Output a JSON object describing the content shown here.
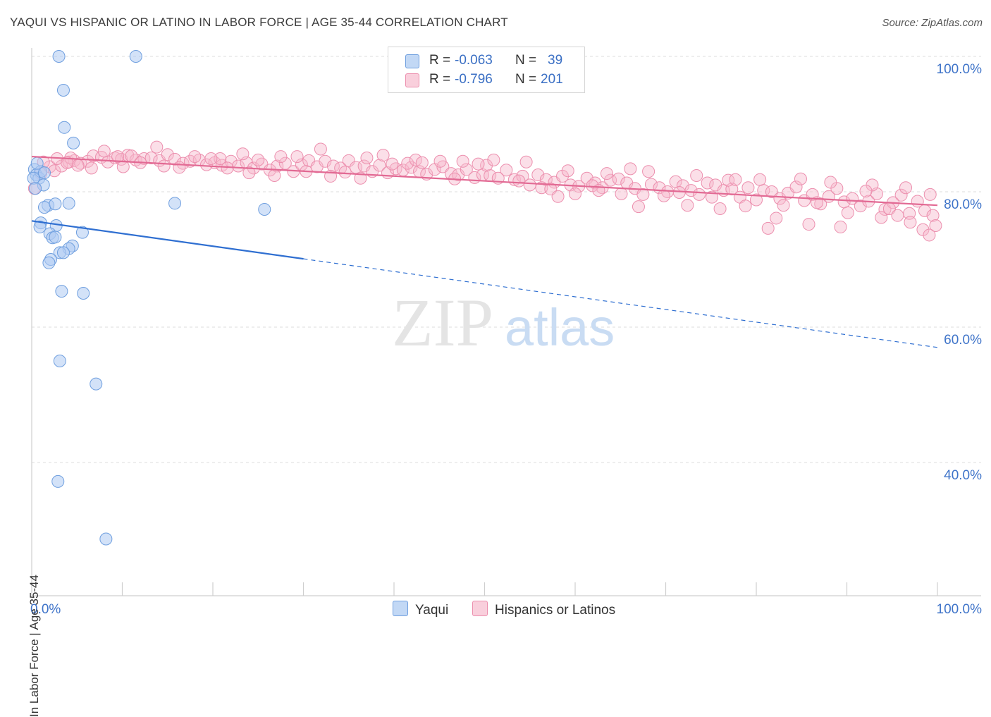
{
  "header": {
    "title": "YAQUI VS HISPANIC OR LATINO IN LABOR FORCE | AGE 35-44 CORRELATION CHART",
    "source": "Source: ZipAtlas.com"
  },
  "legend": {
    "rows": [
      {
        "r_label": "R =",
        "r_value": "-0.063",
        "n_label": "N =",
        "n_value": "39"
      },
      {
        "r_label": "R =",
        "r_value": "-0.796",
        "n_label": "N =",
        "n_value": "201"
      }
    ],
    "bottom": [
      "Yaqui",
      "Hispanics or Latinos"
    ]
  },
  "colors": {
    "yaqui_fill": "#aecbf2",
    "yaqui_stroke": "#6f9fdf",
    "yaqui_line": "#2f6fd1",
    "hisp_fill": "#f6b8cb",
    "hisp_stroke": "#ec8fae",
    "hisp_line": "#e26a94",
    "axis_label": "#3f74c9",
    "grid": "#dcdcdc"
  },
  "watermark": {
    "zip": "ZIP",
    "atlas": "atlas"
  },
  "chart_data": {
    "type": "scatter",
    "title": "YAQUI VS HISPANIC OR LATINO IN LABOR FORCE | AGE 35-44 CORRELATION CHART",
    "xlabel": "",
    "ylabel": "In Labor Force | Age 35-44",
    "xlim": [
      0,
      100
    ],
    "ylim": [
      20,
      104
    ],
    "x_tick_labels": [
      "0.0%",
      "100.0%"
    ],
    "y_ticks": [
      40,
      60,
      80,
      100
    ],
    "y_tick_labels": [
      "40.0%",
      "60.0%",
      "80.0%",
      "100.0%"
    ],
    "series": [
      {
        "name": "Yaqui",
        "r": -0.063,
        "n": 39,
        "trend": {
          "x0": 0,
          "y0": 75.7,
          "x1": 100,
          "y1": 57.0,
          "solid_until_x": 30
        },
        "points": [
          [
            3.0,
            100.0
          ],
          [
            11.5,
            100.0
          ],
          [
            3.5,
            95.0
          ],
          [
            3.6,
            89.5
          ],
          [
            4.6,
            87.2
          ],
          [
            0.3,
            83.3
          ],
          [
            0.5,
            82.5
          ],
          [
            0.8,
            82.0
          ],
          [
            1.0,
            83.0
          ],
          [
            1.4,
            82.8
          ],
          [
            0.2,
            82.0
          ],
          [
            1.3,
            81.0
          ],
          [
            0.4,
            80.5
          ],
          [
            1.8,
            78.0
          ],
          [
            1.4,
            77.7
          ],
          [
            2.6,
            78.2
          ],
          [
            4.1,
            78.3
          ],
          [
            15.8,
            78.3
          ],
          [
            25.7,
            77.4
          ],
          [
            1.0,
            75.4
          ],
          [
            0.9,
            74.8
          ],
          [
            2.7,
            75.0
          ],
          [
            2.0,
            73.8
          ],
          [
            5.6,
            74.0
          ],
          [
            2.3,
            73.2
          ],
          [
            2.6,
            73.3
          ],
          [
            4.5,
            72.0
          ],
          [
            4.1,
            71.6
          ],
          [
            3.1,
            71.0
          ],
          [
            3.5,
            71.0
          ],
          [
            2.1,
            70.0
          ],
          [
            1.9,
            69.5
          ],
          [
            3.3,
            65.3
          ],
          [
            5.7,
            65.0
          ],
          [
            3.1,
            55.0
          ],
          [
            7.1,
            51.6
          ],
          [
            2.9,
            37.2
          ],
          [
            8.2,
            28.7
          ],
          [
            0.6,
            84.2
          ]
        ]
      },
      {
        "name": "Hispanics or Latinos",
        "r": -0.796,
        "n": 201,
        "trend": {
          "x0": 0,
          "y0": 85.2,
          "x1": 100,
          "y1": 78.0
        },
        "points": [
          [
            0.3,
            80.5
          ],
          [
            1.0,
            82.7
          ],
          [
            2.0,
            83.7
          ],
          [
            2.5,
            83.1
          ],
          [
            3.3,
            83.8
          ],
          [
            4.1,
            84.4
          ],
          [
            4.7,
            84.6
          ],
          [
            5.4,
            84.2
          ],
          [
            6.2,
            84.5
          ],
          [
            6.8,
            85.3
          ],
          [
            7.7,
            85.1
          ],
          [
            8.4,
            84.4
          ],
          [
            9.2,
            85.0
          ],
          [
            9.9,
            84.8
          ],
          [
            10.6,
            85.4
          ],
          [
            11.5,
            84.7
          ],
          [
            12.4,
            84.9
          ],
          [
            13.2,
            85.0
          ],
          [
            14.1,
            84.6
          ],
          [
            15.0,
            85.5
          ],
          [
            15.8,
            84.8
          ],
          [
            16.7,
            84.2
          ],
          [
            17.5,
            84.5
          ],
          [
            18.5,
            84.7
          ],
          [
            19.3,
            84.0
          ],
          [
            20.2,
            84.3
          ],
          [
            21.0,
            83.9
          ],
          [
            22.0,
            84.5
          ],
          [
            22.8,
            83.8
          ],
          [
            23.7,
            84.3
          ],
          [
            24.5,
            83.5
          ],
          [
            25.4,
            84.1
          ],
          [
            26.3,
            83.2
          ],
          [
            27.1,
            83.8
          ],
          [
            28.0,
            84.2
          ],
          [
            28.9,
            83.0
          ],
          [
            29.8,
            84.0
          ],
          [
            30.6,
            84.6
          ],
          [
            31.5,
            83.7
          ],
          [
            32.4,
            84.5
          ],
          [
            33.3,
            83.8
          ],
          [
            34.1,
            83.5
          ],
          [
            35.0,
            84.6
          ],
          [
            35.8,
            83.6
          ],
          [
            36.7,
            83.8
          ],
          [
            37.6,
            83.0
          ],
          [
            38.4,
            83.9
          ],
          [
            39.3,
            82.8
          ],
          [
            40.2,
            83.4
          ],
          [
            41.0,
            83.2
          ],
          [
            41.9,
            83.6
          ],
          [
            42.8,
            83.0
          ],
          [
            43.6,
            82.6
          ],
          [
            44.5,
            83.3
          ],
          [
            45.4,
            83.7
          ],
          [
            46.3,
            82.7
          ],
          [
            47.1,
            82.5
          ],
          [
            48.0,
            83.3
          ],
          [
            48.9,
            82.1
          ],
          [
            49.8,
            82.5
          ],
          [
            50.6,
            82.4
          ],
          [
            51.5,
            82.0
          ],
          [
            52.4,
            83.2
          ],
          [
            53.3,
            81.8
          ],
          [
            54.2,
            82.3
          ],
          [
            55.0,
            81.0
          ],
          [
            55.9,
            82.5
          ],
          [
            56.8,
            81.8
          ],
          [
            57.7,
            81.4
          ],
          [
            58.6,
            82.3
          ],
          [
            59.5,
            81.0
          ],
          [
            60.4,
            80.8
          ],
          [
            61.3,
            82.0
          ],
          [
            62.2,
            81.3
          ],
          [
            63.0,
            80.6
          ],
          [
            63.9,
            81.7
          ],
          [
            64.8,
            81.9
          ],
          [
            65.7,
            81.3
          ],
          [
            66.6,
            80.5
          ],
          [
            67.5,
            79.6
          ],
          [
            68.4,
            81.1
          ],
          [
            69.3,
            80.6
          ],
          [
            70.2,
            80.0
          ],
          [
            71.1,
            81.5
          ],
          [
            71.9,
            80.9
          ],
          [
            72.8,
            80.2
          ],
          [
            73.7,
            79.6
          ],
          [
            74.6,
            81.3
          ],
          [
            75.5,
            81.0
          ],
          [
            76.4,
            80.2
          ],
          [
            77.3,
            80.4
          ],
          [
            78.2,
            79.2
          ],
          [
            79.1,
            80.6
          ],
          [
            80.0,
            78.8
          ],
          [
            80.8,
            80.2
          ],
          [
            81.7,
            80.0
          ],
          [
            82.6,
            79.0
          ],
          [
            83.5,
            79.8
          ],
          [
            84.4,
            80.7
          ],
          [
            85.3,
            78.7
          ],
          [
            86.2,
            79.6
          ],
          [
            87.1,
            78.2
          ],
          [
            88.0,
            79.3
          ],
          [
            88.9,
            80.5
          ],
          [
            89.7,
            78.5
          ],
          [
            90.6,
            79.0
          ],
          [
            91.5,
            77.9
          ],
          [
            92.4,
            78.6
          ],
          [
            93.3,
            79.7
          ],
          [
            94.2,
            77.4
          ],
          [
            95.1,
            78.4
          ],
          [
            96.0,
            79.5
          ],
          [
            96.9,
            76.8
          ],
          [
            97.8,
            78.6
          ],
          [
            98.6,
            77.2
          ],
          [
            99.5,
            76.5
          ],
          [
            1.3,
            84.4
          ],
          [
            4.3,
            85.0
          ],
          [
            8.0,
            86.0
          ],
          [
            13.8,
            86.6
          ],
          [
            18.0,
            85.2
          ],
          [
            23.3,
            85.6
          ],
          [
            27.5,
            85.2
          ],
          [
            31.9,
            86.3
          ],
          [
            37.0,
            85.0
          ],
          [
            41.5,
            84.2
          ],
          [
            45.1,
            84.5
          ],
          [
            50.2,
            83.9
          ],
          [
            54.6,
            84.4
          ],
          [
            59.2,
            83.1
          ],
          [
            63.5,
            82.7
          ],
          [
            68.1,
            83.0
          ],
          [
            73.4,
            82.4
          ],
          [
            76.9,
            81.7
          ],
          [
            80.4,
            81.8
          ],
          [
            84.9,
            81.9
          ],
          [
            88.2,
            81.4
          ],
          [
            92.8,
            81.0
          ],
          [
            96.5,
            80.6
          ],
          [
            99.2,
            79.6
          ],
          [
            10.1,
            83.7
          ],
          [
            20.8,
            84.9
          ],
          [
            34.6,
            82.9
          ],
          [
            47.6,
            84.5
          ],
          [
            61.9,
            80.9
          ],
          [
            71.5,
            79.9
          ],
          [
            83.0,
            78.0
          ],
          [
            94.7,
            77.5
          ],
          [
            6.6,
            83.5
          ],
          [
            16.3,
            83.6
          ],
          [
            24.0,
            82.8
          ],
          [
            33.0,
            82.3
          ],
          [
            42.4,
            84.7
          ],
          [
            56.3,
            80.6
          ],
          [
            65.1,
            79.7
          ],
          [
            75.1,
            79.2
          ],
          [
            86.7,
            78.4
          ],
          [
            97.0,
            75.5
          ],
          [
            2.8,
            84.9
          ],
          [
            12.0,
            84.3
          ],
          [
            21.6,
            83.5
          ],
          [
            30.3,
            83.0
          ],
          [
            39.8,
            84.1
          ],
          [
            51.0,
            84.7
          ],
          [
            60.0,
            79.7
          ],
          [
            69.8,
            79.4
          ],
          [
            78.8,
            77.9
          ],
          [
            90.1,
            76.9
          ],
          [
            98.4,
            74.4
          ],
          [
            5.1,
            83.9
          ],
          [
            14.6,
            83.8
          ],
          [
            26.8,
            82.4
          ],
          [
            36.3,
            82.0
          ],
          [
            46.7,
            81.9
          ],
          [
            57.3,
            80.4
          ],
          [
            66.1,
            83.4
          ],
          [
            77.7,
            81.8
          ],
          [
            82.2,
            76.1
          ],
          [
            92.1,
            80.1
          ],
          [
            99.8,
            75.0
          ],
          [
            9.5,
            85.2
          ],
          [
            19.8,
            84.9
          ],
          [
            29.3,
            85.2
          ],
          [
            38.8,
            85.4
          ],
          [
            49.3,
            84.1
          ],
          [
            58.1,
            79.3
          ],
          [
            67.0,
            77.8
          ],
          [
            76.0,
            77.5
          ],
          [
            85.8,
            75.2
          ],
          [
            95.6,
            76.5
          ],
          [
            3.9,
            84.3
          ],
          [
            11.0,
            85.3
          ],
          [
            25.0,
            84.7
          ],
          [
            43.1,
            84.3
          ],
          [
            53.8,
            81.6
          ],
          [
            62.6,
            80.2
          ],
          [
            72.4,
            78.0
          ],
          [
            81.3,
            74.6
          ],
          [
            89.3,
            74.8
          ],
          [
            93.8,
            76.2
          ],
          [
            99.1,
            73.6
          ]
        ]
      }
    ]
  }
}
